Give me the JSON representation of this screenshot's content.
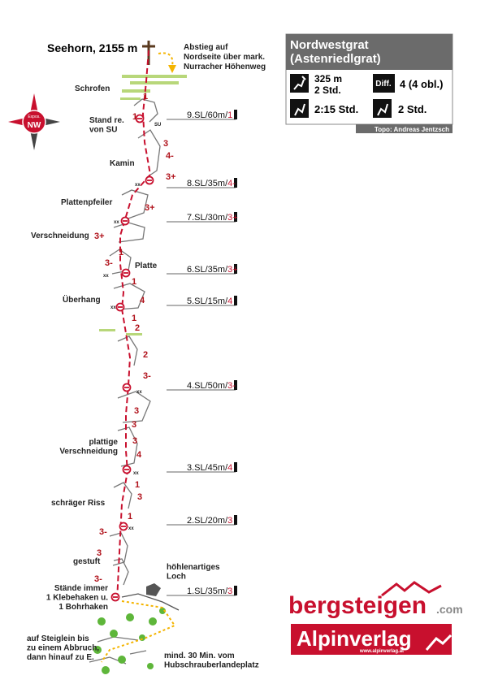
{
  "summit": {
    "name": "Seehorn, 2155 m"
  },
  "descent": {
    "lines": [
      "Abstieg auf",
      "Nordseite über mark.",
      "Nurracher Höhenweg"
    ]
  },
  "info": {
    "title_lines": [
      "Nordwestgrat",
      "(Astenriedlgrat)"
    ],
    "height": "325 m",
    "ascent_time": "2 Std.",
    "diff_label": "Diff.",
    "difficulty": "4 (4 obl.)",
    "approach_time": "2:15 Std.",
    "descent_time": "2 Std.",
    "credit": "Topo: Andreas Jentzsch"
  },
  "compass": {
    "label": "Expos.",
    "direction": "NW"
  },
  "pitches": [
    {
      "label": "9.SL/60m/",
      "grade": "1"
    },
    {
      "label": "8.SL/35m/",
      "grade": "4-"
    },
    {
      "label": "7.SL/30m/",
      "grade": "3+"
    },
    {
      "label": "6.SL/35m/",
      "grade": "3+"
    },
    {
      "label": "5.SL/15m/",
      "grade": "4"
    },
    {
      "label": "4.SL/50m/",
      "grade": "3-"
    },
    {
      "label": "3.SL/45m/",
      "grade": "4"
    },
    {
      "label": "2.SL/20m/",
      "grade": "3"
    },
    {
      "label": "1.SL/35m/",
      "grade": "3"
    }
  ],
  "features": [
    {
      "lines": [
        "Schrofen"
      ]
    },
    {
      "lines": [
        "Stand re.",
        "von SU"
      ]
    },
    {
      "lines": [
        "Kamin"
      ]
    },
    {
      "lines": [
        "Plattenpfeiler"
      ]
    },
    {
      "lines": [
        "Verschneidung"
      ]
    },
    {
      "lines": [
        "Platte"
      ]
    },
    {
      "lines": [
        "Überhang"
      ]
    },
    {
      "lines": [
        "plattige",
        "Verschneidung"
      ]
    },
    {
      "lines": [
        "schräger Riss"
      ]
    },
    {
      "lines": [
        "gestuft"
      ]
    },
    {
      "lines": [
        "Stände immer",
        "1 Klebehaken u.",
        "1 Bohrhaken"
      ]
    },
    {
      "lines": [
        "höhlenartiges",
        "Loch"
      ]
    },
    {
      "lines": [
        "auf Steiglein bis",
        "zu einem Abbruch,",
        "dann hinauf zu E."
      ]
    },
    {
      "lines": [
        "mind. 30 Min. vom",
        "Hubschrauberlandeplatz"
      ]
    }
  ],
  "grades": [
    "1",
    "1",
    "3",
    "4-",
    "3+",
    "3+",
    "3+",
    "1",
    "3-",
    "1",
    "4",
    "1",
    "2",
    "2",
    "3-",
    "3",
    "3",
    "3",
    "4",
    "1",
    "3",
    "1",
    "3-",
    "3",
    "3-"
  ],
  "anchors": [
    "SU",
    "xx",
    "xx",
    "xx",
    "xx",
    "xx",
    "xx",
    "xx"
  ],
  "logos": {
    "brand": "bergsteigen",
    "domain": ".com",
    "publisher": "Alpinverlag",
    "url": "www.alpinverlag.at"
  }
}
